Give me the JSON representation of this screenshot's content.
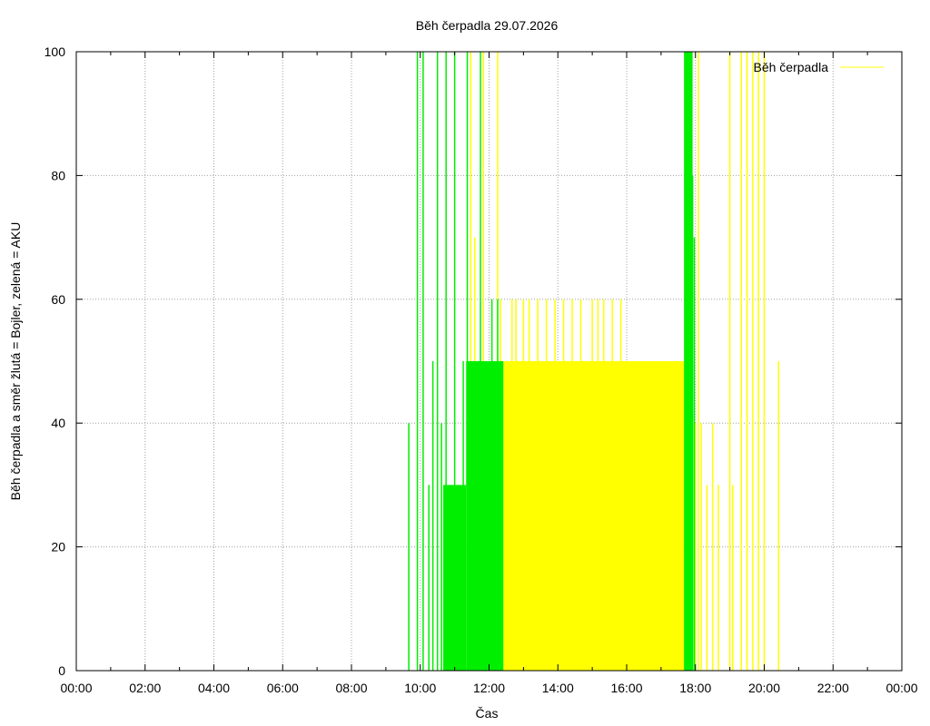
{
  "chart_data": {
    "type": "bar",
    "title": "Běh čerpadla 29.07.2026",
    "xlabel": "Čas",
    "ylabel": "Běh čerpadla a směr žlutá = Bojler, zelená = AKU",
    "x_ticks": [
      "00:00",
      "02:00",
      "04:00",
      "06:00",
      "08:00",
      "10:00",
      "12:00",
      "14:00",
      "16:00",
      "18:00",
      "20:00",
      "22:00",
      "00:00"
    ],
    "y_ticks": [
      "0",
      "20",
      "40",
      "60",
      "80",
      "100"
    ],
    "xlim_hours": [
      0,
      24
    ],
    "ylim": [
      0,
      100
    ],
    "grid": true,
    "legend_position": "top-right",
    "colors": {
      "bojler": "#ffff00",
      "aku": "#00ee00"
    },
    "series": [
      {
        "name": "Běh čerpadla",
        "color": "#ffff00",
        "points": [
          [
            "11:28",
            100
          ],
          [
            "11:35",
            70
          ],
          [
            "11:50",
            100
          ],
          [
            "12:15",
            100
          ],
          [
            "12:20",
            60
          ],
          [
            "12:23",
            50
          ],
          [
            "12:35",
            50
          ],
          [
            "12:40",
            60
          ],
          [
            "12:47",
            60
          ],
          [
            "13:00",
            60
          ],
          [
            "13:10",
            60
          ],
          [
            "13:25",
            60
          ],
          [
            "13:40",
            60
          ],
          [
            "13:55",
            60
          ],
          [
            "14:10",
            60
          ],
          [
            "14:25",
            60
          ],
          [
            "14:40",
            60
          ],
          [
            "15:00",
            60
          ],
          [
            "15:10",
            60
          ],
          [
            "15:20",
            60
          ],
          [
            "15:35",
            60
          ],
          [
            "15:50",
            60
          ],
          [
            "16:05",
            50
          ],
          [
            "16:20",
            40
          ],
          [
            "16:35",
            50
          ],
          [
            "16:50",
            40
          ],
          [
            "17:05",
            50
          ],
          [
            "17:20",
            50
          ],
          [
            "18:00",
            40
          ],
          [
            "18:05",
            100
          ],
          [
            "18:10",
            40
          ],
          [
            "18:20",
            30
          ],
          [
            "18:30",
            40
          ],
          [
            "18:40",
            30
          ],
          [
            "19:00",
            100
          ],
          [
            "19:05",
            30
          ],
          [
            "19:20",
            100
          ],
          [
            "19:30",
            100
          ],
          [
            "19:40",
            100
          ],
          [
            "19:50",
            100
          ],
          [
            "20:00",
            100
          ],
          [
            "20:25",
            50
          ]
        ]
      },
      {
        "name": "",
        "color": "#00ee00",
        "points": [
          [
            "09:40",
            40
          ],
          [
            "09:55",
            100
          ],
          [
            "10:05",
            100
          ],
          [
            "10:15",
            30
          ],
          [
            "10:22",
            50
          ],
          [
            "10:30",
            100
          ],
          [
            "10:37",
            40
          ],
          [
            "10:45",
            100
          ],
          [
            "10:52",
            30
          ],
          [
            "11:00",
            100
          ],
          [
            "11:07",
            30
          ],
          [
            "11:15",
            50
          ],
          [
            "11:22",
            100
          ],
          [
            "11:30",
            40
          ],
          [
            "11:40",
            50
          ],
          [
            "11:45",
            100
          ],
          [
            "11:55",
            50
          ],
          [
            "12:05",
            60
          ],
          [
            "12:15",
            60
          ],
          [
            "17:45",
            100
          ],
          [
            "17:50",
            100
          ],
          [
            "17:53",
            90
          ],
          [
            "17:55",
            80
          ],
          [
            "17:58",
            70
          ]
        ],
        "blocks": [
          [
            "10:40",
            "11:20",
            30
          ],
          [
            "11:20",
            "11:55",
            50
          ],
          [
            "11:55",
            "12:25",
            50
          ],
          [
            "17:40",
            "17:55",
            100
          ]
        ]
      }
    ],
    "fill_blocks": [
      {
        "series": 0,
        "from": "12:25",
        "to": "17:40",
        "value": 50
      }
    ]
  }
}
